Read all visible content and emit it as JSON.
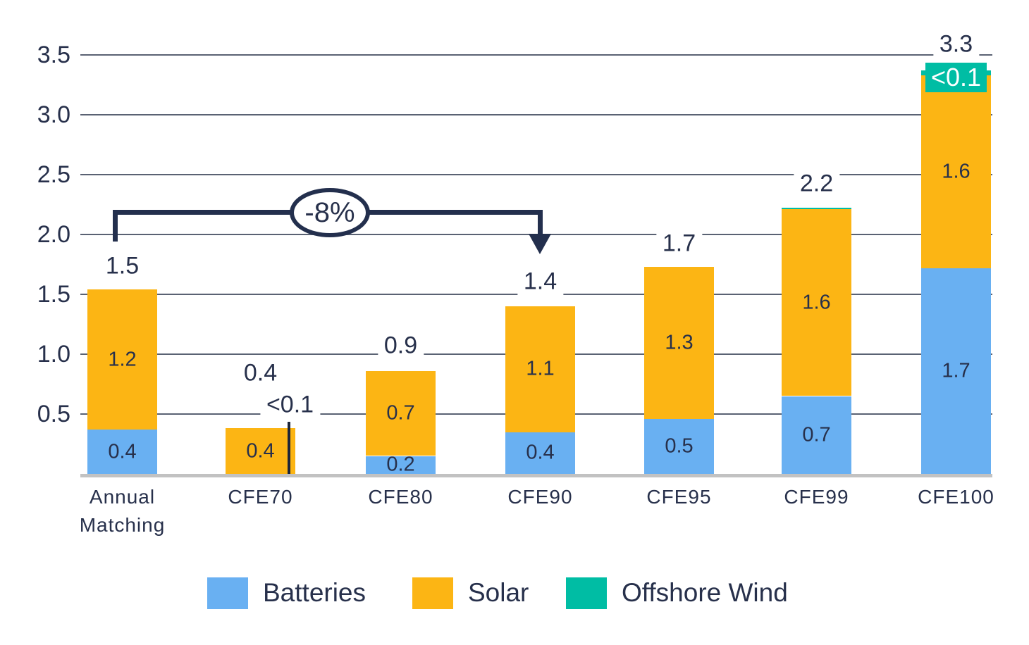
{
  "chart_data": {
    "type": "bar",
    "stacked": true,
    "title": "",
    "xlabel": "",
    "ylabel": "",
    "ylim": [
      0,
      3.5
    ],
    "grid": true,
    "legend_position": "bottom",
    "yticks": [
      "0.5",
      "1.0",
      "1.5",
      "2.0",
      "2.5",
      "3.0",
      "3.5"
    ],
    "categories": [
      "Annual\nMatching",
      "CFE70",
      "CFE80",
      "CFE90",
      "CFE95",
      "CFE99",
      "CFE100"
    ],
    "series": [
      {
        "name": "Batteries",
        "color": "#69B0F2",
        "values": [
          0.4,
          0.05,
          0.2,
          0.4,
          0.5,
          0.7,
          1.7
        ],
        "labels": [
          "0.4",
          "<0.1",
          "0.2",
          "0.4",
          "0.5",
          "0.7",
          "1.7"
        ],
        "precise": [
          0.37,
          0.03,
          0.15,
          0.35,
          0.46,
          0.65,
          1.72
        ]
      },
      {
        "name": "Solar",
        "color": "#FCB514",
        "values": [
          1.2,
          0.4,
          0.7,
          1.1,
          1.3,
          1.6,
          1.6
        ],
        "labels": [
          "1.2",
          "0.4",
          "0.7",
          "1.1",
          "1.3",
          "1.6",
          "1.6"
        ],
        "precise": [
          1.17,
          0.38,
          0.71,
          1.05,
          1.27,
          1.56,
          1.61
        ]
      },
      {
        "name": "Offshore Wind",
        "color": "#00BDA4",
        "values": [
          0,
          0,
          0,
          0,
          0,
          0.02,
          0.05
        ],
        "labels": [
          null,
          null,
          null,
          null,
          null,
          null,
          "<0.1"
        ],
        "precise": [
          0,
          0,
          0,
          0,
          0,
          0.015,
          0.04
        ]
      }
    ],
    "totals": [
      "1.5",
      "0.4",
      "0.9",
      "1.4",
      "1.7",
      "2.2",
      "3.3"
    ],
    "annotation": {
      "text": "-8%",
      "from_category": "Annual Matching",
      "to_category": "CFE90"
    },
    "callouts": {
      "cfe70_batteries": "<0.1",
      "cfe100_offshore_wind": "<0.1"
    },
    "legend": [
      "Batteries",
      "Solar",
      "Offshore Wind"
    ]
  }
}
